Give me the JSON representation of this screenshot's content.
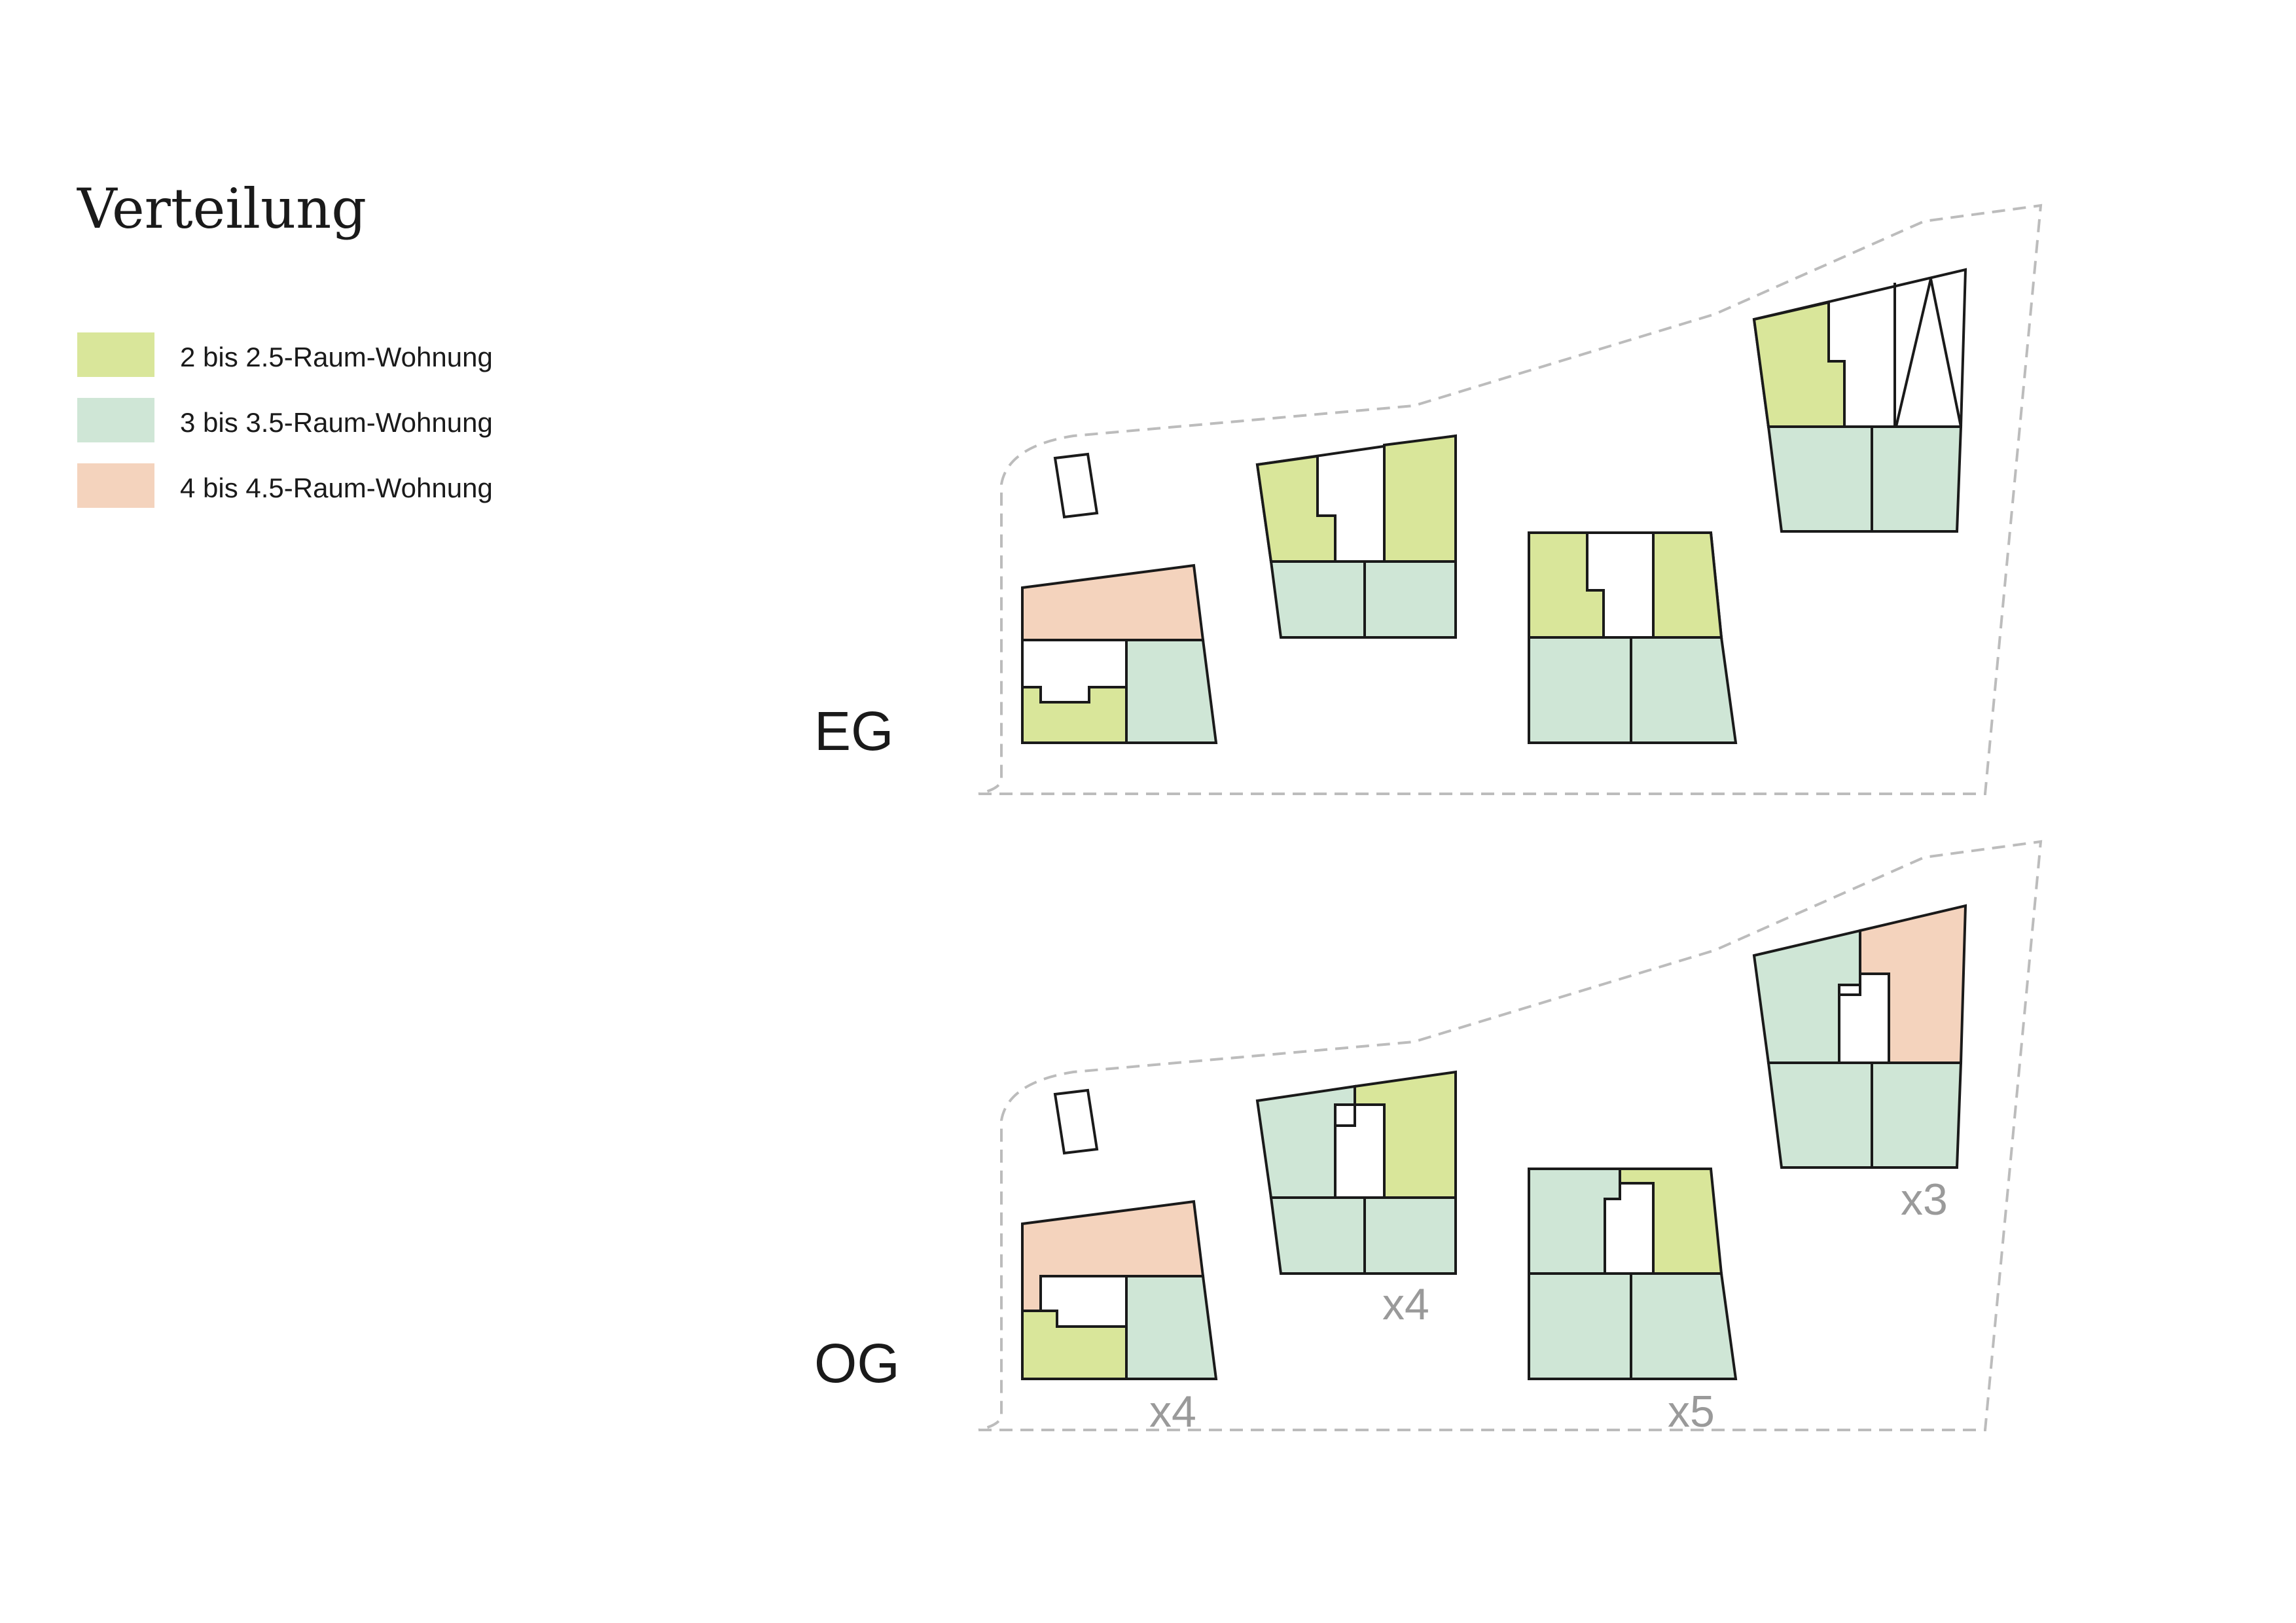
{
  "title": "Verteilung",
  "legend": [
    {
      "label": "2 bis 2.5-Raum-Wohnung",
      "color": "#d9e69a"
    },
    {
      "label": "3 bis 3.5-Raum-Wohnung",
      "color": "#cfe6d6"
    },
    {
      "label": "4 bis 4.5-Raum-Wohnung",
      "color": "#f4d3bd"
    }
  ],
  "colors": {
    "green": "#d9e69a",
    "mint": "#cfe6d6",
    "peach": "#f4d3bd",
    "core": "#ffffff",
    "outline": "#1a1a1a",
    "site_boundary": "#bcbcbc",
    "multiplier_text": "#9a9a9a"
  },
  "floors": {
    "eg": {
      "label": "EG"
    },
    "og": {
      "label": "OG"
    }
  },
  "multipliers": {
    "building_1": "x4",
    "building_2": "x4",
    "building_3": "x5",
    "building_4": "x3"
  }
}
